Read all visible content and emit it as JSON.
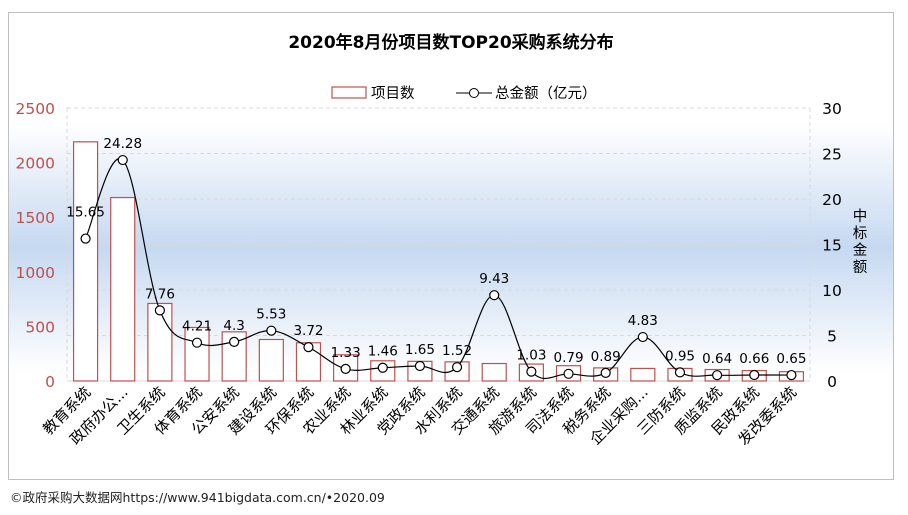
{
  "chart_data": {
    "type": "bar+line",
    "title": "2020年8月份项目数TOP20采购系统分布",
    "legend": {
      "placement": "top-center",
      "bar_label": "项目数",
      "line_label": "总金额（亿元）"
    },
    "categories": [
      "教育系统",
      "政府办公...",
      "卫生系统",
      "体育系统",
      "公安系统",
      "建设系统",
      "环保系统",
      "农业系统",
      "林业系统",
      "党政系统",
      "水利系统",
      "交通系统",
      "旅游系统",
      "司法系统",
      "税务系统",
      "企业采购...",
      "三防系统",
      "质监系统",
      "民政系统",
      "发改委系统"
    ],
    "series": [
      {
        "name": "项目数",
        "type": "bar",
        "axis": "left",
        "values": [
          2190,
          1680,
          710,
          490,
          450,
          380,
          350,
          240,
          185,
          180,
          175,
          160,
          155,
          140,
          120,
          115,
          115,
          105,
          95,
          85
        ]
      },
      {
        "name": "总金额（亿元）",
        "type": "line",
        "axis": "right",
        "values": [
          15.65,
          24.28,
          7.76,
          4.21,
          4.3,
          5.53,
          3.72,
          1.33,
          1.46,
          1.65,
          1.52,
          9.43,
          1.03,
          0.79,
          0.89,
          4.83,
          0.95,
          0.64,
          0.66,
          0.65
        ],
        "labels": [
          "15.65",
          "24.28",
          "7.76",
          "4.21",
          "4.3",
          "5.53",
          "3.72",
          "1.33",
          "1.46",
          "1.65",
          "1.52",
          "9.43",
          "1.03",
          "0.79",
          "0.89",
          "4.83",
          "0.95",
          "0.64",
          "0.66",
          "0.65"
        ]
      }
    ],
    "y_left": {
      "ylim": [
        0,
        2500
      ],
      "ticks": [
        "0",
        "500",
        "1000",
        "1500",
        "2000",
        "2500"
      ],
      "color": "#c0504d"
    },
    "y_right": {
      "ylim": [
        0,
        30
      ],
      "ticks": [
        "0",
        "5",
        "10",
        "15",
        "20",
        "25",
        "30"
      ],
      "label": "中标金额"
    },
    "colors": {
      "bar_stroke": "#c0504d",
      "bar_fill": "#ffffff",
      "line": "#000000",
      "band": "#c6d9f1"
    }
  },
  "footer": "©政府采购大数据网https://www.941bigdata.com.cn/•2020.09"
}
